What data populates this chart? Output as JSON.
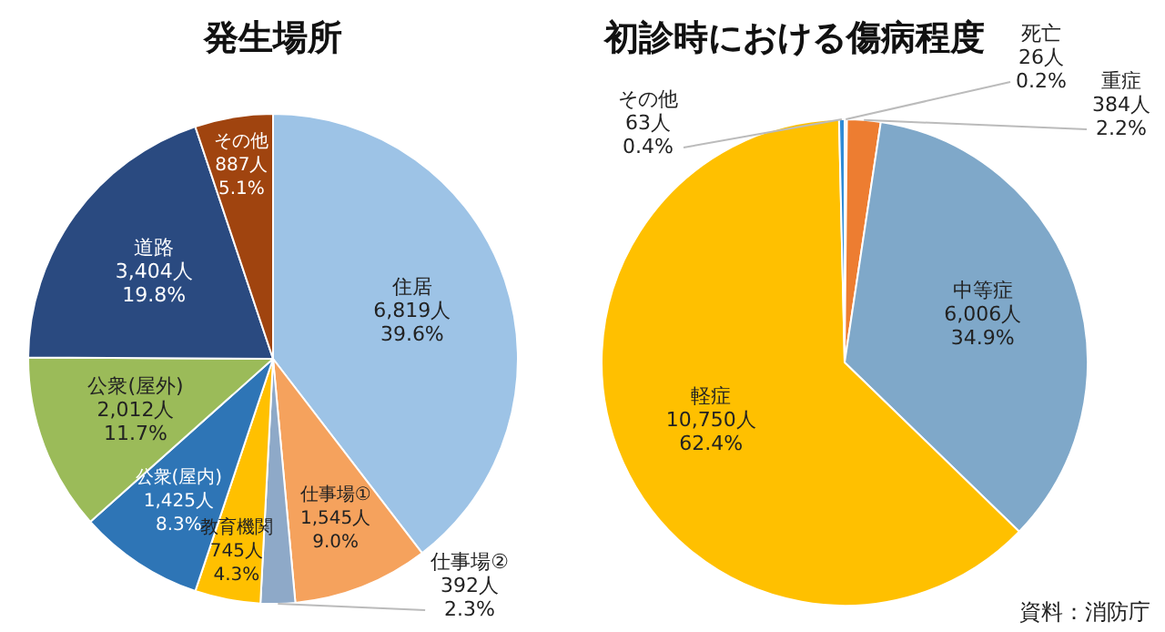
{
  "chart_data": [
    {
      "type": "pie",
      "title": "発生場所",
      "categories": [
        "住居",
        "仕事場①",
        "仕事場②",
        "教育機関",
        "公衆(屋内)",
        "公衆(屋外)",
        "道路",
        "その他"
      ],
      "values": [
        6819,
        1545,
        392,
        745,
        1425,
        2012,
        3404,
        887
      ],
      "colors": [
        "#9dc3e6",
        "#f5a25d",
        "#8ea9c8",
        "#ffc000",
        "#2e75b6",
        "#9bbb59",
        "#2a4a80",
        "#a0440f"
      ],
      "value_labels": [
        "6,819人\n39.6%",
        "1,545人\n9.0%",
        "392人\n2.3%",
        "745人\n4.3%",
        "1,425人\n8.3%",
        "2,012人\n11.7%",
        "3,404人\n19.8%",
        "887人\n5.1%"
      ]
    },
    {
      "type": "pie",
      "title": "初診時における傷病程度",
      "categories": [
        "死亡",
        "重症",
        "中等症",
        "軽症",
        "その他"
      ],
      "values": [
        26,
        384,
        6006,
        10750,
        63
      ],
      "colors": [
        "#d9d9d9",
        "#ed7d31",
        "#7fa8c9",
        "#ffc000",
        "#2e8bd6"
      ],
      "value_labels": [
        "26人\n0.2%",
        "384人\n2.2%",
        "6,006人\n34.9%",
        "10,750人\n62.4%",
        "63人\n0.4%"
      ],
      "annotations": [
        "資料：消防庁"
      ]
    }
  ]
}
